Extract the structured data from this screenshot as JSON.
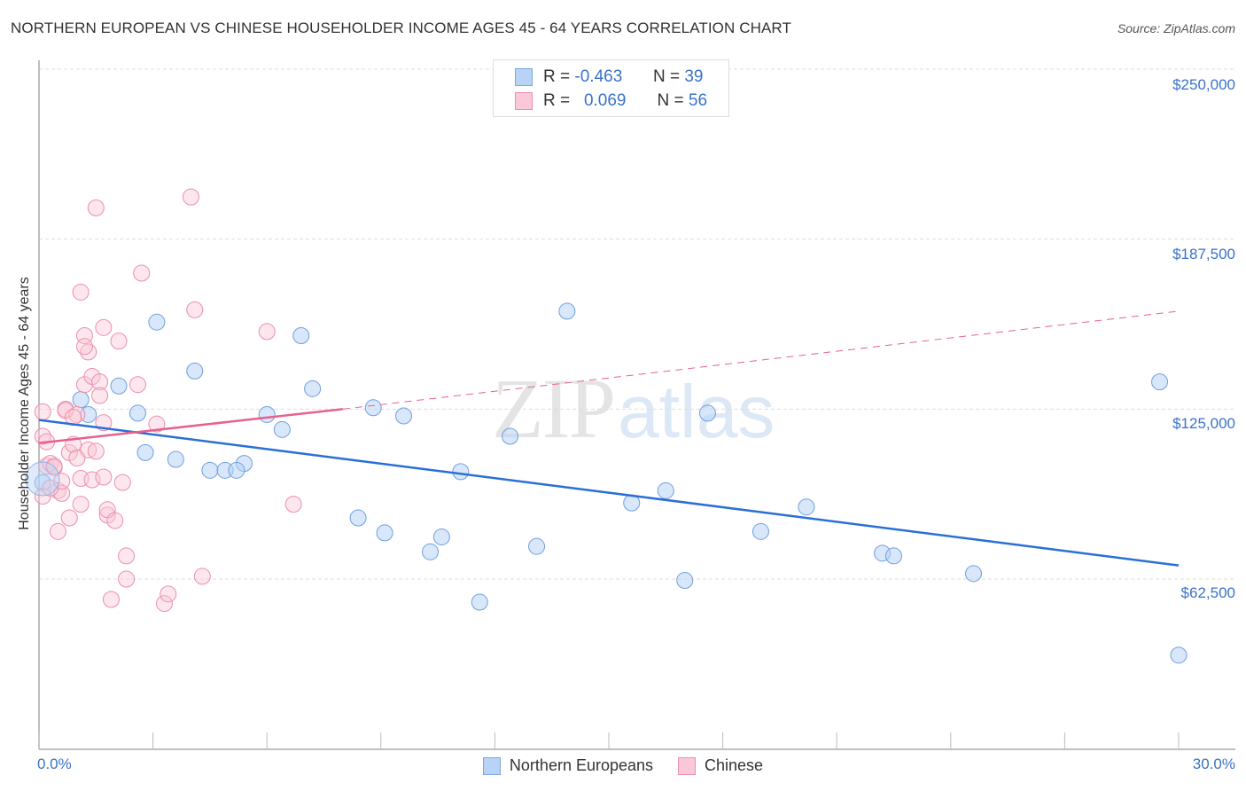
{
  "header": {
    "title": "NORTHERN EUROPEAN VS CHINESE HOUSEHOLDER INCOME AGES 45 - 64 YEARS CORRELATION CHART",
    "source": "Source: ZipAtlas.com"
  },
  "legend": {
    "rows": [
      {
        "r_label": "R =",
        "r_value": "-0.463",
        "n_label": "N =",
        "n_value": "39",
        "color": "#b8d3f5",
        "border": "#7aa6e0"
      },
      {
        "r_label": "R =",
        "r_value": "0.069",
        "n_label": "N =",
        "n_value": "56",
        "color": "#fac8d8",
        "border": "#ec8fac"
      }
    ]
  },
  "bottom_legend": {
    "items": [
      {
        "label": "Northern Europeans",
        "color": "#b8d3f5",
        "border": "#7aa6e0"
      },
      {
        "label": "Chinese",
        "color": "#fac8d8",
        "border": "#ec8fac"
      }
    ]
  },
  "axes": {
    "ylabel": "Householder Income Ages 45 - 64 years",
    "yticks": [
      "$250,000",
      "$187,500",
      "$125,000",
      "$62,500"
    ],
    "xtick_left": "0.0%",
    "xtick_right": "30.0%"
  },
  "watermark": {
    "zip": "ZIP",
    "atlas": "atlas"
  },
  "colors": {
    "blue_line": "#2a6fd6",
    "pink_line": "#e8608e",
    "tick_text": "#3a72c9"
  },
  "chart_data": {
    "type": "scatter",
    "title": "NORTHERN EUROPEAN VS CHINESE HOUSEHOLDER INCOME AGES 45 - 64 YEARS CORRELATION CHART",
    "xlabel": "",
    "ylabel": "Householder Income Ages 45 - 64 years",
    "xlim": [
      0,
      30
    ],
    "ylim": [
      0,
      262500
    ],
    "x_unit": "%",
    "yticks": [
      62500,
      125000,
      187500,
      250000
    ],
    "grid": true,
    "legend_position": "top-center",
    "series": [
      {
        "name": "Northern Europeans",
        "R": -0.463,
        "N": 39,
        "color": "#b8d3f5",
        "trend": {
          "x": [
            0,
            30
          ],
          "y": [
            121000,
            67500
          ]
        },
        "points": [
          [
            0.1,
            98000
          ],
          [
            1.1,
            128500
          ],
          [
            1.3,
            123000
          ],
          [
            2.1,
            133500
          ],
          [
            2.6,
            123500
          ],
          [
            2.8,
            109000
          ],
          [
            3.1,
            157000
          ],
          [
            3.6,
            106500
          ],
          [
            4.1,
            139000
          ],
          [
            4.5,
            102500
          ],
          [
            4.9,
            102500
          ],
          [
            5.4,
            105000
          ],
          [
            5.2,
            102500
          ],
          [
            6.0,
            123000
          ],
          [
            6.4,
            117500
          ],
          [
            6.9,
            152000
          ],
          [
            7.2,
            132500
          ],
          [
            8.4,
            85000
          ],
          [
            8.8,
            125500
          ],
          [
            9.1,
            79500
          ],
          [
            9.6,
            122500
          ],
          [
            10.3,
            72500
          ],
          [
            10.6,
            78000
          ],
          [
            11.1,
            102000
          ],
          [
            11.6,
            54000
          ],
          [
            12.4,
            115000
          ],
          [
            13.1,
            74500
          ],
          [
            13.9,
            161000
          ],
          [
            15.6,
            90500
          ],
          [
            16.5,
            95000
          ],
          [
            17.0,
            62000
          ],
          [
            17.6,
            123500
          ],
          [
            19.0,
            80000
          ],
          [
            20.2,
            89000
          ],
          [
            22.2,
            72000
          ],
          [
            22.5,
            71000
          ],
          [
            24.6,
            64500
          ],
          [
            29.5,
            135000
          ],
          [
            30.0,
            34500
          ]
        ]
      },
      {
        "name": "Chinese",
        "R": 0.069,
        "N": 56,
        "color": "#fac8d8",
        "trend": {
          "x": [
            0,
            8
          ],
          "y": [
            112500,
            125000
          ],
          "extended_dashed_to": {
            "x": 30,
            "y": 161000
          }
        },
        "points": [
          [
            0.1,
            124000
          ],
          [
            0.1,
            115000
          ],
          [
            0.1,
            93000
          ],
          [
            0.2,
            104000
          ],
          [
            0.3,
            105000
          ],
          [
            0.4,
            103500
          ],
          [
            0.5,
            95000
          ],
          [
            0.5,
            80000
          ],
          [
            0.6,
            94000
          ],
          [
            0.7,
            125000
          ],
          [
            0.7,
            124500
          ],
          [
            0.8,
            85000
          ],
          [
            0.8,
            109000
          ],
          [
            0.9,
            112000
          ],
          [
            1.0,
            107000
          ],
          [
            1.0,
            123000
          ],
          [
            1.1,
            90000
          ],
          [
            1.1,
            99500
          ],
          [
            1.1,
            168000
          ],
          [
            1.2,
            134000
          ],
          [
            1.2,
            152000
          ],
          [
            1.3,
            146000
          ],
          [
            1.3,
            110000
          ],
          [
            1.4,
            137000
          ],
          [
            1.4,
            99000
          ],
          [
            1.5,
            199000
          ],
          [
            1.6,
            135000
          ],
          [
            1.6,
            130000
          ],
          [
            1.7,
            120000
          ],
          [
            1.7,
            155000
          ],
          [
            1.8,
            86000
          ],
          [
            1.8,
            88000
          ],
          [
            1.9,
            55000
          ],
          [
            2.1,
            150000
          ],
          [
            2.2,
            98000
          ],
          [
            2.3,
            71000
          ],
          [
            2.3,
            62500
          ],
          [
            2.6,
            134000
          ],
          [
            2.7,
            175000
          ],
          [
            3.1,
            119500
          ],
          [
            3.3,
            53500
          ],
          [
            3.4,
            57000
          ],
          [
            4.0,
            203000
          ],
          [
            4.1,
            161500
          ],
          [
            4.3,
            63500
          ],
          [
            6.0,
            153500
          ],
          [
            6.7,
            90000
          ],
          [
            0.3,
            96000
          ],
          [
            0.4,
            104000
          ],
          [
            0.6,
            98500
          ],
          [
            0.9,
            122000
          ],
          [
            1.5,
            109500
          ],
          [
            1.7,
            100000
          ],
          [
            2.0,
            84000
          ],
          [
            0.2,
            113000
          ],
          [
            1.2,
            148000
          ]
        ]
      }
    ]
  }
}
